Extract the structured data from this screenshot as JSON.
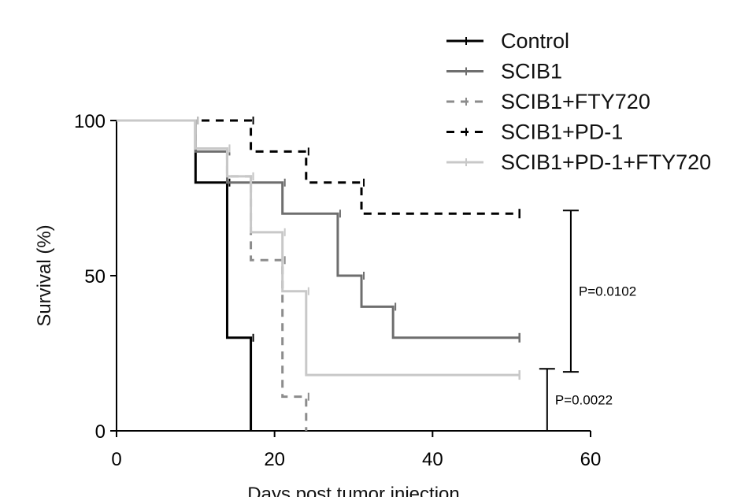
{
  "chart_data": {
    "type": "line",
    "subtype": "kaplan-meier step",
    "xlabel": "Days post tumor injection",
    "ylabel": "Survival (%)",
    "xlim": [
      0,
      60
    ],
    "ylim": [
      0,
      100
    ],
    "xticks": [
      0,
      20,
      40,
      60
    ],
    "yticks": [
      0,
      50,
      100
    ],
    "grid": false,
    "legend_position": "top-right",
    "series": [
      {
        "name": "Control",
        "color": "#000000",
        "dash": "solid",
        "x": [
          0,
          10,
          10,
          14,
          14,
          17,
          17
        ],
        "y": [
          100,
          100,
          80,
          80,
          30,
          30,
          0
        ]
      },
      {
        "name": "SCIB1",
        "color": "#6e6e6e",
        "dash": "solid",
        "x": [
          0,
          10,
          10,
          14,
          14,
          21,
          21,
          28,
          28,
          31,
          31,
          35,
          35,
          51
        ],
        "y": [
          100,
          100,
          90,
          90,
          80,
          80,
          70,
          70,
          50,
          50,
          40,
          40,
          30,
          30
        ]
      },
      {
        "name": "SCIB1+FTY720",
        "color": "#8c8c8c",
        "dash": "dashed",
        "x": [
          0,
          10,
          10,
          14,
          14,
          17,
          17,
          21,
          21,
          24,
          24
        ],
        "y": [
          100,
          100,
          91,
          91,
          82,
          82,
          55,
          55,
          11,
          11,
          0
        ]
      },
      {
        "name": "SCIB1+PD-1",
        "color": "#000000",
        "dash": "dashed",
        "x": [
          0,
          10,
          10,
          17,
          17,
          24,
          24,
          31,
          31,
          51
        ],
        "y": [
          100,
          100,
          100,
          100,
          90,
          90,
          80,
          80,
          70,
          70
        ]
      },
      {
        "name": "SCIB1+PD-1+FTY720",
        "color": "#c8c8c8",
        "dash": "solid",
        "x": [
          0,
          10,
          10,
          14,
          14,
          17,
          17,
          21,
          21,
          24,
          24,
          51
        ],
        "y": [
          100,
          100,
          91,
          91,
          82,
          82,
          64,
          64,
          45,
          45,
          18,
          18
        ]
      }
    ],
    "annotations": [
      {
        "label": "P=0.0102",
        "x": 57.5,
        "y_from": 19,
        "y_to": 71
      },
      {
        "label": "P=0.0022",
        "x": 54.5,
        "y_from": 0,
        "y_to": 20
      }
    ]
  }
}
